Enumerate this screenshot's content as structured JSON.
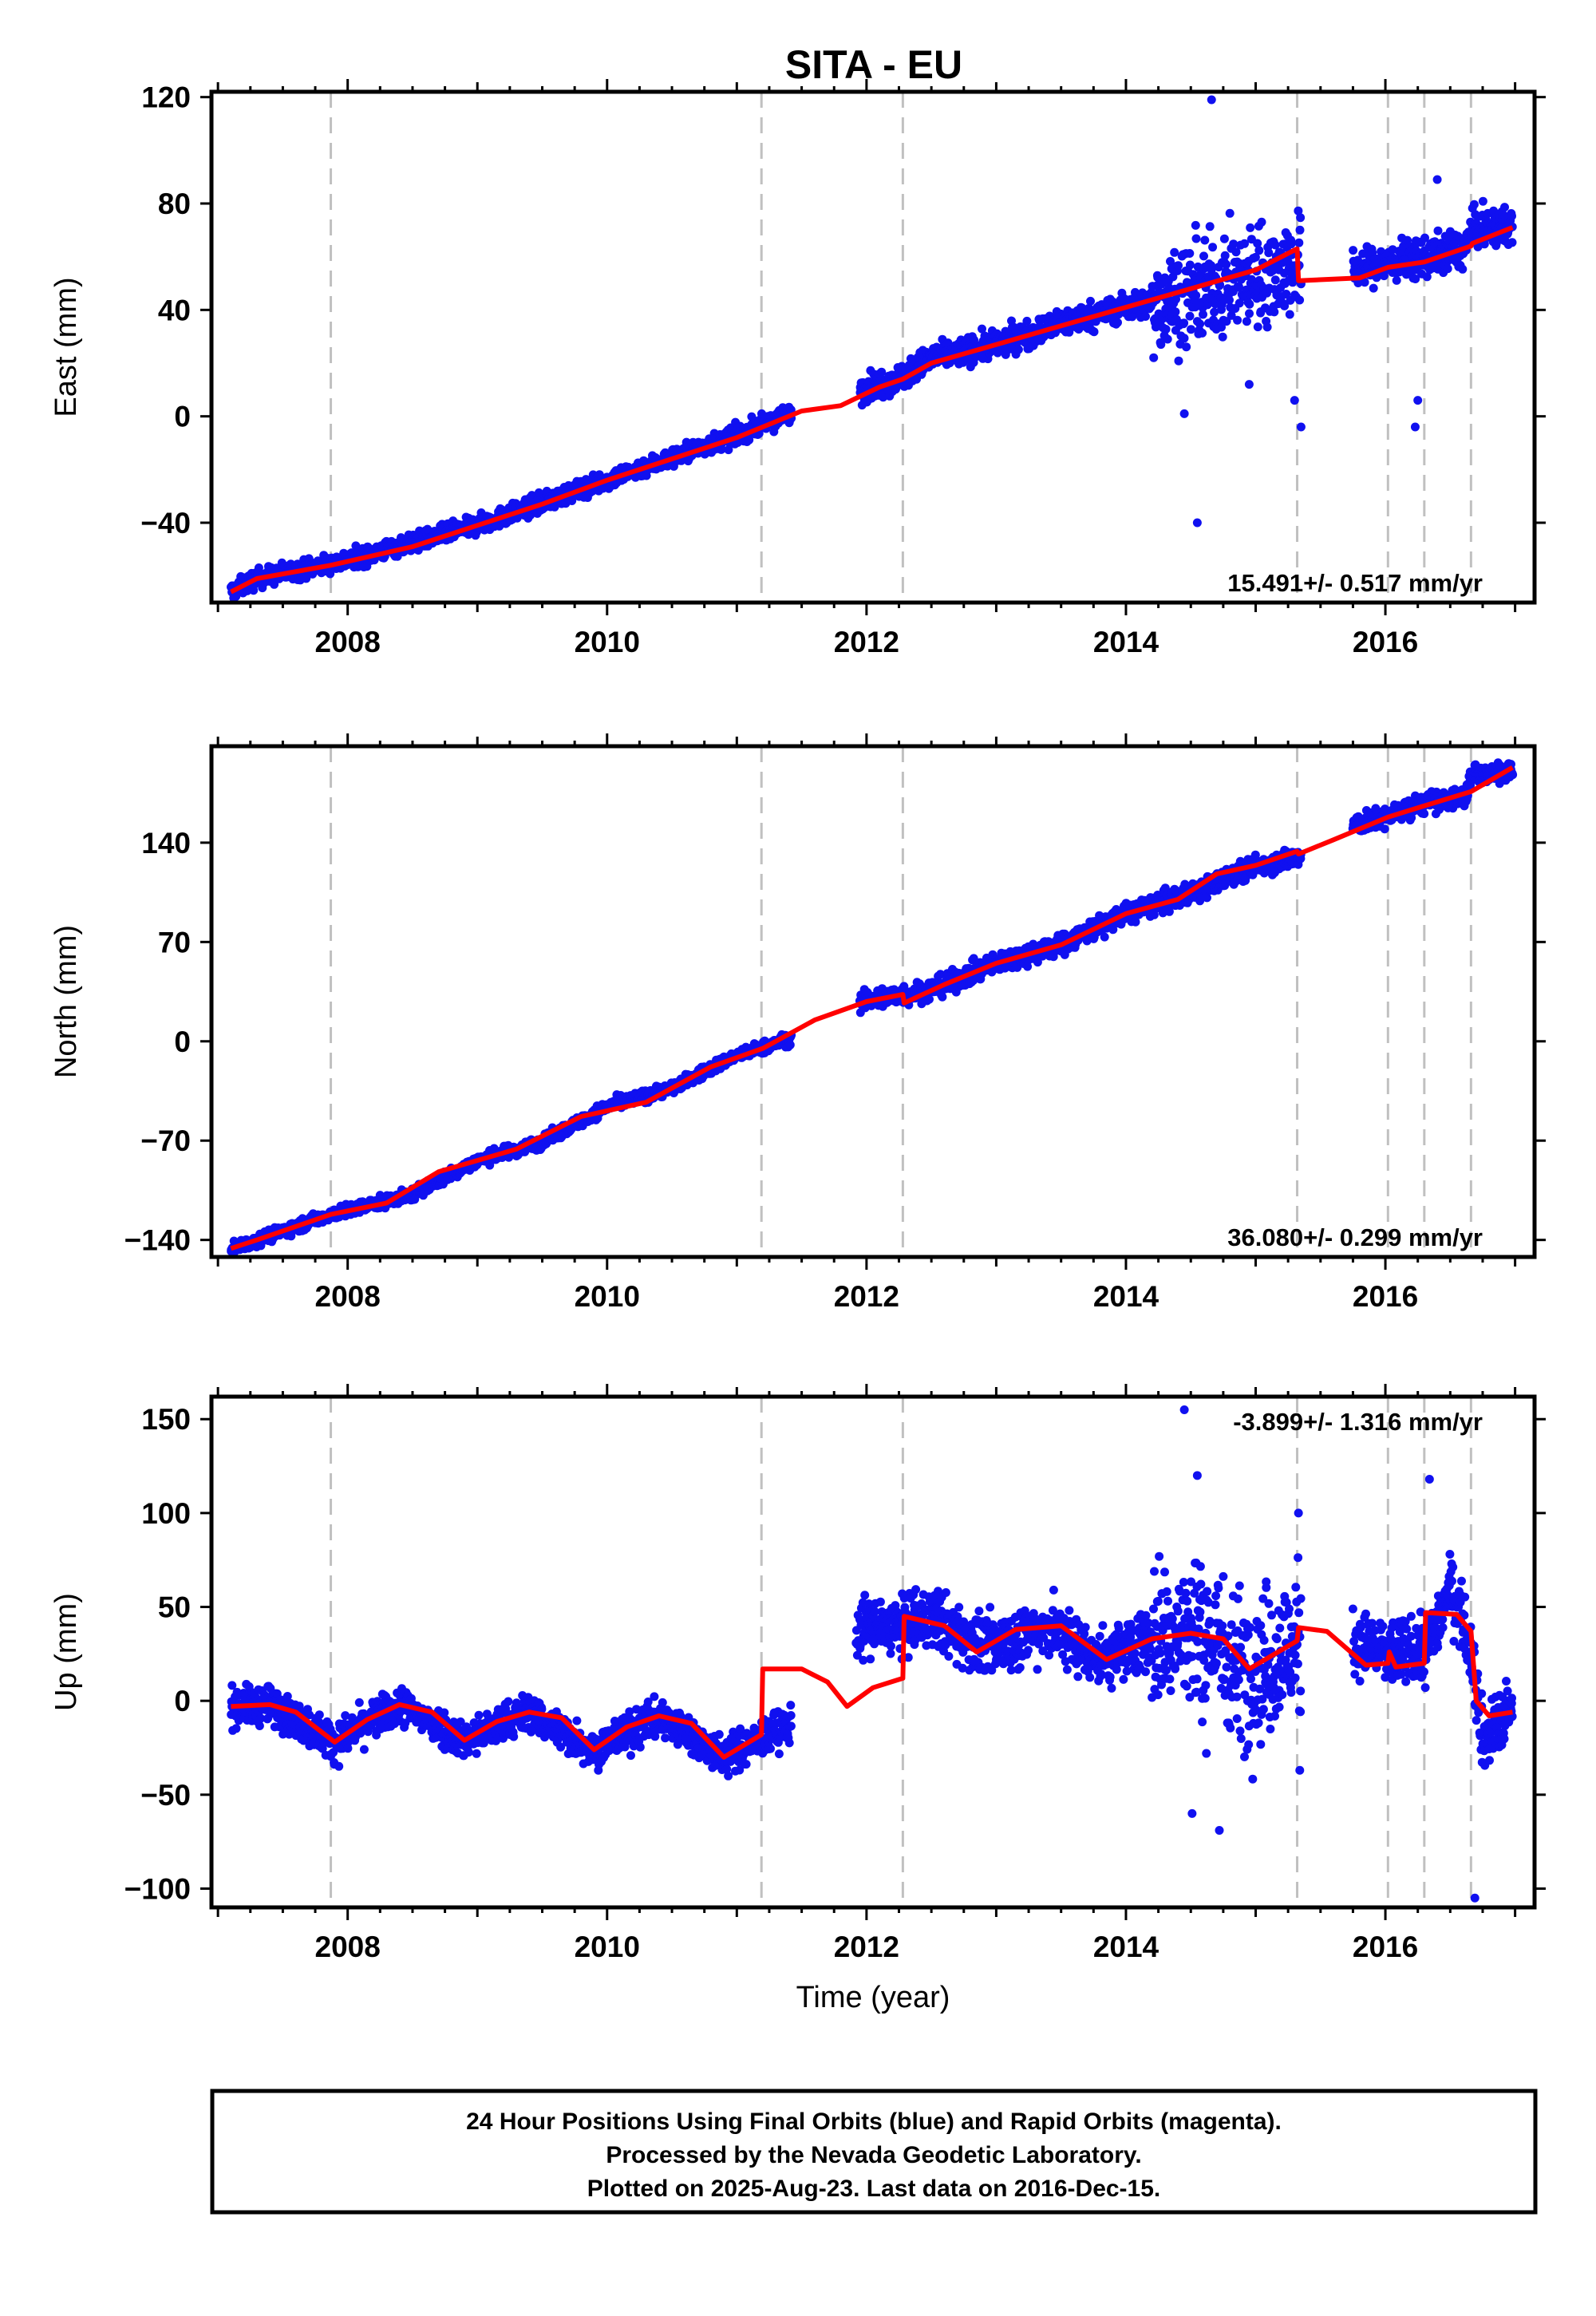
{
  "title": "SITA - EU",
  "colors": {
    "data": "#1010f0",
    "model": "#ff0000",
    "event": "#c0c0c0",
    "frame": "#000000"
  },
  "chart_data": [
    {
      "type": "scatter",
      "ylabel": "East (mm)",
      "xlabel": "",
      "xlim": [
        2006.95,
        2017.15
      ],
      "ylim": [
        -70,
        122
      ],
      "yticks": [
        120,
        80,
        40,
        0,
        -40
      ],
      "yticklabels": [
        "120",
        "80",
        "40",
        "0",
        "−40"
      ],
      "xticks": [
        2008,
        2010,
        2012,
        2014,
        2016
      ],
      "xticklabels": [
        "2008",
        "2010",
        "2012",
        "2014",
        "2016"
      ],
      "rate_text": "15.491+/- 0.517 mm/yr",
      "rate_position": "bottom-right",
      "event_lines": [
        2007.87,
        2011.19,
        2012.28,
        2015.32,
        2016.02,
        2016.3,
        2016.66
      ],
      "data_segments": [
        {
          "x": [
            2007.1,
            2011.42
          ],
          "anchors": [
            [
              2007.1,
              -66
            ],
            [
              2007.3,
              -61
            ],
            [
              2008,
              -54
            ],
            [
              2009,
              -41
            ],
            [
              2010,
              -24
            ],
            [
              2011,
              -7
            ],
            [
              2011.42,
              1
            ]
          ],
          "noise": 2.4
        },
        {
          "x": [
            2011.95,
            2015.35
          ],
          "anchors": [
            [
              2011.95,
              10
            ],
            [
              2012.28,
              15
            ],
            [
              2012.5,
              22
            ],
            [
              2013,
              27
            ],
            [
              2013.5,
              35
            ],
            [
              2014,
              41
            ],
            [
              2014.25,
              43
            ],
            [
              2015.35,
              57
            ]
          ],
          "noise": 3.5,
          "wide": [
            2014.2,
            2015.35
          ],
          "wide_noise": 13
        },
        {
          "x": [
            2015.75,
            2016.98
          ],
          "anchors": [
            [
              2015.75,
              55
            ],
            [
              2016,
              57
            ],
            [
              2016.3,
              60
            ],
            [
              2016.62,
              63
            ],
            [
              2016.66,
              70
            ],
            [
              2016.98,
              71
            ]
          ],
          "noise": 5
        }
      ],
      "outliers": [
        [
          2014.55,
          -40
        ],
        [
          2014.66,
          119
        ],
        [
          2015.3,
          6
        ],
        [
          2016.25,
          6
        ],
        [
          2016.23,
          -4
        ],
        [
          2015.35,
          -4
        ],
        [
          2016.4,
          89
        ],
        [
          2014.95,
          12
        ],
        [
          2014.45,
          1
        ]
      ],
      "model_line": [
        [
          2007.1,
          -66
        ],
        [
          2007.3,
          -61
        ],
        [
          2007.87,
          -56
        ],
        [
          2008.5,
          -49
        ],
        [
          2009,
          -41
        ],
        [
          2009.5,
          -33
        ],
        [
          2010,
          -24
        ],
        [
          2010.5,
          -16
        ],
        [
          2011,
          -8
        ],
        [
          2011.2,
          -4
        ],
        [
          2011.5,
          2
        ],
        [
          2011.8,
          4
        ],
        [
          2012.1,
          11
        ],
        [
          2012.28,
          14
        ],
        [
          2012.5,
          20
        ],
        [
          2013,
          27
        ],
        [
          2013.5,
          34
        ],
        [
          2014,
          41
        ],
        [
          2014.5,
          48
        ],
        [
          2015,
          55
        ],
        [
          2015.32,
          63
        ],
        [
          2015.33,
          51
        ],
        [
          2015.8,
          52
        ],
        [
          2016.02,
          56
        ],
        [
          2016.3,
          58
        ],
        [
          2016.66,
          64
        ],
        [
          2016.67,
          65
        ],
        [
          2016.98,
          71
        ]
      ]
    },
    {
      "type": "scatter",
      "ylabel": "North (mm)",
      "xlabel": "",
      "xlim": [
        2006.95,
        2017.15
      ],
      "ylim": [
        -152,
        208
      ],
      "yticks": [
        140,
        70,
        0,
        -70,
        -140
      ],
      "yticklabels": [
        "140",
        "70",
        "0",
        "−70",
        "−140"
      ],
      "xticks": [
        2008,
        2010,
        2012,
        2014,
        2016
      ],
      "xticklabels": [
        "2008",
        "2010",
        "2012",
        "2014",
        "2016"
      ],
      "rate_text": "36.080+/- 0.299 mm/yr",
      "rate_position": "bottom-right",
      "event_lines": [
        2007.87,
        2011.19,
        2012.28,
        2015.32,
        2016.02,
        2016.3,
        2016.66
      ],
      "data_segments": [
        {
          "x": [
            2007.1,
            2011.42
          ],
          "anchors": [
            [
              2007.1,
              -146
            ],
            [
              2007.3,
              -140
            ],
            [
              2007.87,
              -122
            ],
            [
              2008.5,
              -108
            ],
            [
              2009,
              -84
            ],
            [
              2009.5,
              -71
            ],
            [
              2010,
              -46
            ],
            [
              2010.5,
              -33
            ],
            [
              2011,
              -10
            ],
            [
              2011.42,
              2
            ]
          ],
          "noise": 3
        },
        {
          "x": [
            2011.95,
            2015.35
          ],
          "anchors": [
            [
              2011.95,
              28
            ],
            [
              2012.28,
              33
            ],
            [
              2012.5,
              36
            ],
            [
              2013,
              55
            ],
            [
              2013.5,
              68
            ],
            [
              2014,
              90
            ],
            [
              2014.5,
              104
            ],
            [
              2015,
              124
            ],
            [
              2015.35,
              130
            ]
          ],
          "noise": 5
        },
        {
          "x": [
            2015.75,
            2016.98
          ],
          "anchors": [
            [
              2015.75,
              152
            ],
            [
              2016,
              158
            ],
            [
              2016.3,
              168
            ],
            [
              2016.62,
              172
            ],
            [
              2016.66,
              188
            ],
            [
              2016.98,
              190
            ]
          ],
          "noise": 5
        }
      ],
      "outliers": [],
      "model_line": [
        [
          2007.1,
          -146
        ],
        [
          2007.3,
          -140
        ],
        [
          2007.87,
          -122
        ],
        [
          2008.3,
          -114
        ],
        [
          2008.7,
          -92
        ],
        [
          2009.3,
          -76
        ],
        [
          2009.8,
          -53
        ],
        [
          2010.3,
          -43
        ],
        [
          2010.8,
          -18
        ],
        [
          2011.2,
          -5
        ],
        [
          2011.6,
          15
        ],
        [
          2012,
          28
        ],
        [
          2012.28,
          33
        ],
        [
          2012.29,
          27
        ],
        [
          2012.6,
          40
        ],
        [
          2013,
          55
        ],
        [
          2013.5,
          68
        ],
        [
          2014,
          90
        ],
        [
          2014.4,
          100
        ],
        [
          2014.7,
          118
        ],
        [
          2015,
          124
        ],
        [
          2015.32,
          134
        ],
        [
          2015.33,
          132
        ],
        [
          2015.6,
          142
        ],
        [
          2016.02,
          158
        ],
        [
          2016.3,
          166
        ],
        [
          2016.66,
          176
        ],
        [
          2016.98,
          193
        ]
      ]
    },
    {
      "type": "scatter",
      "ylabel": "Up (mm)",
      "xlabel": "Time (year)",
      "xlim": [
        2006.95,
        2017.15
      ],
      "ylim": [
        -110,
        162
      ],
      "yticks": [
        150,
        100,
        50,
        0,
        -50,
        -100
      ],
      "yticklabels": [
        "150",
        "100",
        "50",
        "0",
        "−50",
        "−100"
      ],
      "xticks": [
        2008,
        2010,
        2012,
        2014,
        2016
      ],
      "xticklabels": [
        "2008",
        "2010",
        "2012",
        "2014",
        "2016"
      ],
      "rate_text": "-3.899+/- 1.316 mm/yr",
      "rate_position": "top-right",
      "event_lines": [
        2007.87,
        2011.19,
        2012.28,
        2015.32,
        2016.02,
        2016.3,
        2016.66
      ],
      "data_segments": [
        {
          "x": [
            2007.1,
            2011.42
          ],
          "anchors": [
            [
              2007.1,
              -3
            ],
            [
              2007.4,
              -2
            ],
            [
              2007.9,
              -22
            ],
            [
              2008.4,
              -2
            ],
            [
              2008.9,
              -21
            ],
            [
              2009.4,
              -6
            ],
            [
              2009.9,
              -26
            ],
            [
              2010.4,
              -8
            ],
            [
              2010.9,
              -30
            ],
            [
              2011.42,
              -12
            ]
          ],
          "noise": 7
        },
        {
          "x": [
            2011.92,
            2015.35
          ],
          "anchors": [
            [
              2011.92,
              38
            ],
            [
              2012.28,
              40
            ],
            [
              2012.5,
              45
            ],
            [
              2012.9,
              28
            ],
            [
              2013.4,
              40
            ],
            [
              2013.8,
              22
            ],
            [
              2014.2,
              34
            ],
            [
              2014.6,
              36
            ],
            [
              2014.9,
              16
            ],
            [
              2015.35,
              30
            ]
          ],
          "noise": 11,
          "wide": [
            2014.2,
            2015.35
          ],
          "wide_noise": 28
        },
        {
          "x": [
            2015.75,
            2016.98
          ],
          "anchors": [
            [
              2015.75,
              32
            ],
            [
              2016,
              25
            ],
            [
              2016.3,
              26
            ],
            [
              2016.5,
              60
            ],
            [
              2016.66,
              30
            ],
            [
              2016.75,
              -20
            ],
            [
              2016.98,
              -5
            ]
          ],
          "noise": 12
        }
      ],
      "outliers": [
        [
          2014.45,
          155
        ],
        [
          2014.72,
          -69
        ],
        [
          2014.51,
          -60
        ],
        [
          2016.69,
          -105
        ],
        [
          2016.34,
          118
        ],
        [
          2014.55,
          120
        ],
        [
          2015.33,
          100
        ],
        [
          2015.34,
          -37
        ],
        [
          2014.62,
          -28
        ]
      ],
      "model_line": [
        [
          2007.1,
          -3
        ],
        [
          2007.4,
          -2
        ],
        [
          2007.6,
          -6
        ],
        [
          2007.9,
          -22
        ],
        [
          2008.15,
          -10
        ],
        [
          2008.4,
          -2
        ],
        [
          2008.65,
          -6
        ],
        [
          2008.9,
          -21
        ],
        [
          2009.15,
          -11
        ],
        [
          2009.4,
          -6
        ],
        [
          2009.65,
          -9
        ],
        [
          2009.9,
          -26
        ],
        [
          2010.15,
          -14
        ],
        [
          2010.4,
          -8
        ],
        [
          2010.65,
          -12
        ],
        [
          2010.9,
          -30
        ],
        [
          2011.19,
          -18
        ],
        [
          2011.2,
          17
        ],
        [
          2011.5,
          17
        ],
        [
          2011.7,
          10
        ],
        [
          2011.85,
          -3
        ],
        [
          2012.05,
          7
        ],
        [
          2012.28,
          12
        ],
        [
          2012.29,
          45
        ],
        [
          2012.6,
          40
        ],
        [
          2012.85,
          26
        ],
        [
          2013.15,
          38
        ],
        [
          2013.5,
          40
        ],
        [
          2013.85,
          22
        ],
        [
          2014.2,
          33
        ],
        [
          2014.5,
          36
        ],
        [
          2014.75,
          33
        ],
        [
          2014.95,
          17
        ],
        [
          2015.32,
          32
        ],
        [
          2015.33,
          39
        ],
        [
          2015.55,
          37
        ],
        [
          2015.85,
          19
        ],
        [
          2016.02,
          20
        ],
        [
          2016.03,
          26
        ],
        [
          2016.08,
          18
        ],
        [
          2016.3,
          20
        ],
        [
          2016.31,
          47
        ],
        [
          2016.55,
          46
        ],
        [
          2016.66,
          37
        ],
        [
          2016.7,
          0
        ],
        [
          2016.8,
          -8
        ],
        [
          2016.98,
          -6
        ]
      ]
    }
  ],
  "footer": {
    "line1": "24 Hour Positions Using Final Orbits (blue) and Rapid Orbits (magenta).",
    "line2": "Processed by the Nevada Geodetic Laboratory.",
    "line3": "Plotted on 2025-Aug-23. Last data on 2016-Dec-15."
  }
}
